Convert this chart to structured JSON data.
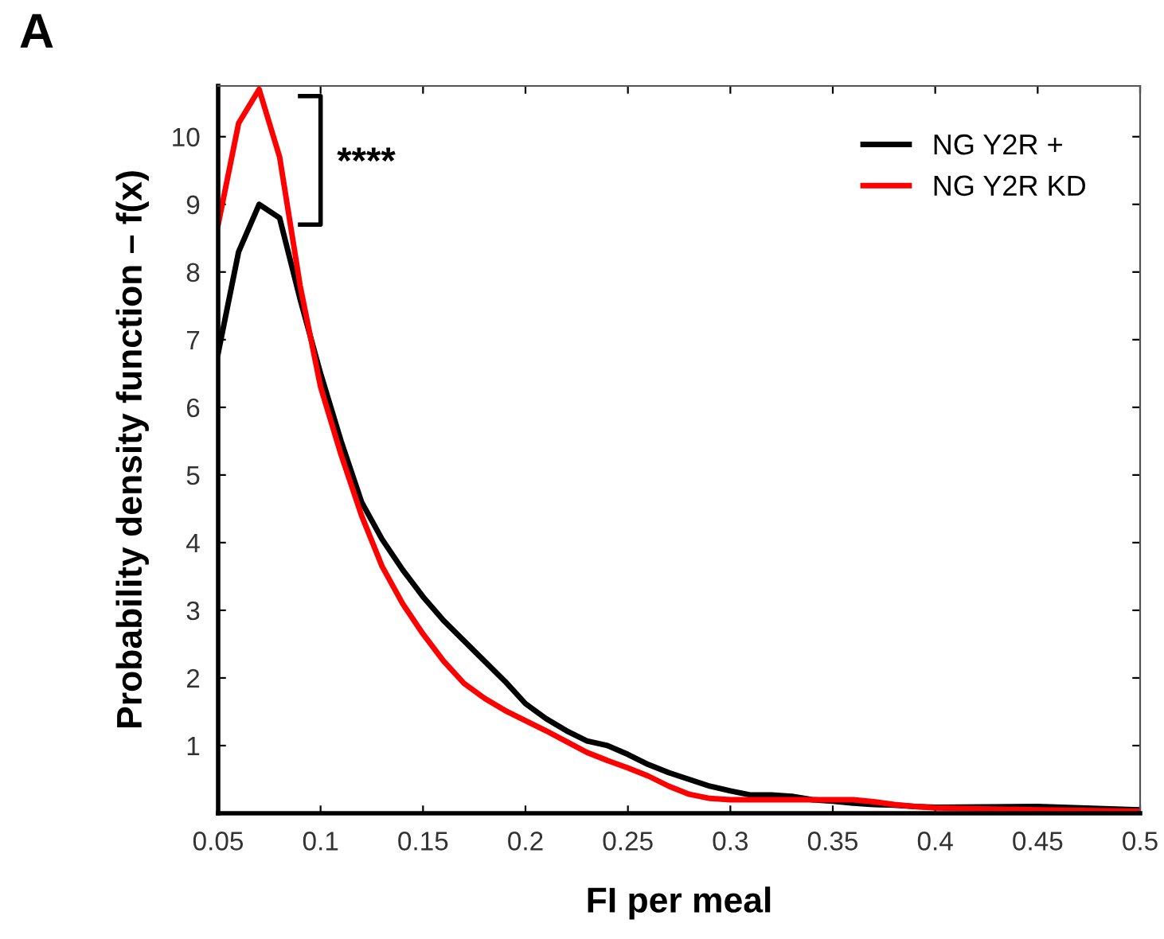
{
  "chart_data": {
    "type": "line",
    "xlabel": "FI per meal",
    "ylabel": "Probability density function – f(x)",
    "annotations": [
      "A",
      "****"
    ],
    "series": [
      {
        "name": "NG Y2R +",
        "color": "#000000",
        "x": [
          0.05,
          0.06,
          0.07,
          0.08,
          0.09,
          0.1,
          0.11,
          0.12,
          0.13,
          0.14,
          0.15,
          0.16,
          0.17,
          0.18,
          0.19,
          0.2,
          0.21,
          0.22,
          0.23,
          0.24,
          0.25,
          0.26,
          0.27,
          0.28,
          0.29,
          0.3,
          0.31,
          0.32,
          0.33,
          0.34,
          0.35,
          0.36,
          0.37,
          0.38,
          0.39,
          0.4,
          0.45,
          0.5
        ],
        "values": [
          6.8,
          8.3,
          9.0,
          8.8,
          7.6,
          6.5,
          5.5,
          4.6,
          4.05,
          3.6,
          3.2,
          2.85,
          2.55,
          2.25,
          1.95,
          1.62,
          1.4,
          1.22,
          1.07,
          1.0,
          0.87,
          0.72,
          0.6,
          0.5,
          0.4,
          0.33,
          0.27,
          0.27,
          0.25,
          0.2,
          0.18,
          0.15,
          0.13,
          0.12,
          0.1,
          0.09,
          0.1,
          0.05
        ]
      },
      {
        "name": "NG Y2R KD",
        "color": "#ff0000",
        "x": [
          0.05,
          0.06,
          0.07,
          0.08,
          0.09,
          0.1,
          0.11,
          0.12,
          0.13,
          0.14,
          0.15,
          0.16,
          0.17,
          0.18,
          0.19,
          0.2,
          0.21,
          0.22,
          0.23,
          0.24,
          0.25,
          0.26,
          0.27,
          0.28,
          0.29,
          0.3,
          0.31,
          0.32,
          0.33,
          0.34,
          0.35,
          0.36,
          0.37,
          0.38,
          0.39,
          0.4,
          0.45,
          0.5
        ],
        "values": [
          8.7,
          10.2,
          10.7,
          9.7,
          7.8,
          6.3,
          5.3,
          4.4,
          3.65,
          3.1,
          2.65,
          2.25,
          1.92,
          1.7,
          1.52,
          1.37,
          1.22,
          1.06,
          0.9,
          0.78,
          0.67,
          0.55,
          0.4,
          0.28,
          0.22,
          0.2,
          0.2,
          0.2,
          0.2,
          0.2,
          0.2,
          0.2,
          0.17,
          0.13,
          0.1,
          0.08,
          0.05,
          0.03
        ]
      }
    ],
    "xlim": [
      0.05,
      0.5
    ],
    "xticks": [
      0.05,
      0.1,
      0.15,
      0.2,
      0.25,
      0.3,
      0.35,
      0.4,
      0.45,
      0.5
    ],
    "ylim": [
      0,
      10.75
    ],
    "yticks": [
      1,
      2,
      3,
      4,
      5,
      6,
      7,
      8,
      9,
      10
    ],
    "grid": false,
    "legend": "top right",
    "line_style": "solid",
    "marker": "none"
  }
}
